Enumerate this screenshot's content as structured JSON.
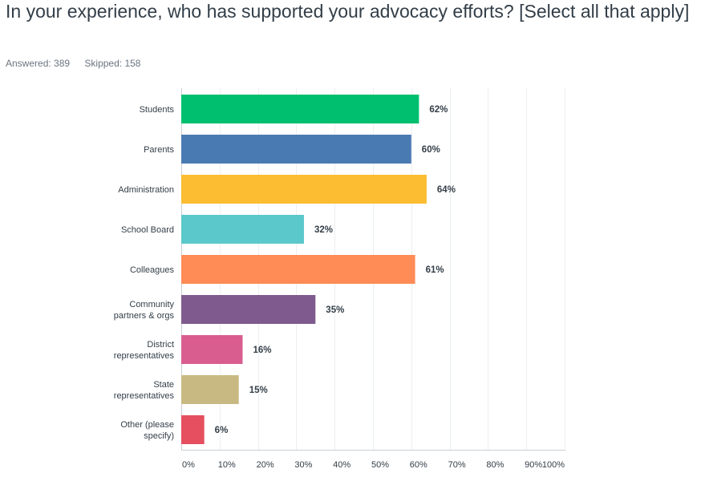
{
  "question_title": "In your experience, who has supported your advocacy efforts? [Select all that apply]",
  "answered": "Answered: 389",
  "skipped": "Skipped: 158",
  "chart_data": {
    "type": "bar",
    "orientation": "horizontal",
    "categories": [
      "Students",
      "Parents",
      "Administration",
      "School Board",
      "Colleagues",
      "Community partners & orgs",
      "District representatives",
      "State representatives",
      "Other (please specify)"
    ],
    "category_lines": [
      [
        "Students"
      ],
      [
        "Parents"
      ],
      [
        "Administration"
      ],
      [
        "School Board"
      ],
      [
        "Colleagues"
      ],
      [
        "Community",
        "partners & orgs"
      ],
      [
        "District",
        "representatives"
      ],
      [
        "State",
        "representatives"
      ],
      [
        "Other (please",
        "specify)"
      ]
    ],
    "values": [
      62,
      60,
      64,
      32,
      61,
      35,
      16,
      15,
      6
    ],
    "value_labels": [
      "62%",
      "60%",
      "64%",
      "32%",
      "61%",
      "35%",
      "16%",
      "15%",
      "6%"
    ],
    "colors": [
      "#00bf6f",
      "#4a7ab2",
      "#fdbd32",
      "#5bc8cc",
      "#ff8b56",
      "#7e5a8e",
      "#d95d8f",
      "#c8b983",
      "#e54f5f"
    ],
    "xlim": [
      0,
      100
    ],
    "x_ticks": [
      "0%",
      "10%",
      "20%",
      "30%",
      "40%",
      "50%",
      "60%",
      "70%",
      "80%",
      "90%",
      "100%"
    ],
    "grid": true
  }
}
